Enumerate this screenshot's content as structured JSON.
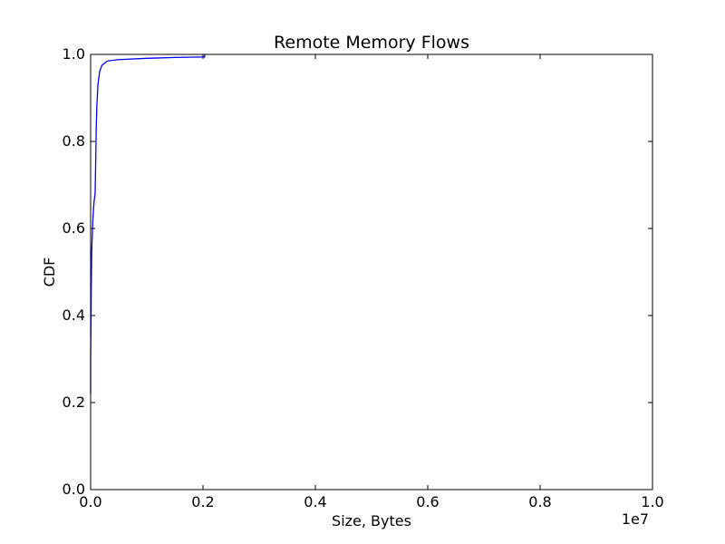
{
  "chart_data": {
    "type": "line",
    "title": "Remote Memory Flows",
    "xlabel": "Size, Bytes",
    "ylabel": "CDF",
    "x_offset_label": "1e7",
    "xlim": [
      0,
      10000000
    ],
    "ylim": [
      0,
      1.0
    ],
    "x_scale": "linear",
    "grid": false,
    "legend": "none",
    "x_ticks": [
      0,
      2000000,
      4000000,
      6000000,
      8000000,
      10000000
    ],
    "x_tick_labels": [
      "0.0",
      "0.2",
      "0.4",
      "0.6",
      "0.8",
      "1.0"
    ],
    "y_ticks": [
      0,
      0.2,
      0.4,
      0.6,
      0.8,
      1.0
    ],
    "y_tick_labels": [
      "0.0",
      "0.2",
      "0.4",
      "0.6",
      "0.8",
      "1.0"
    ],
    "series": [
      {
        "color": "#0000ff",
        "x": [
          0,
          0,
          10000,
          20000,
          40000,
          60000,
          80000,
          90000,
          100000,
          110000,
          130000,
          160000,
          200000,
          300000,
          500000,
          1000000,
          1500000,
          2000000,
          2030000,
          2030000
        ],
        "y": [
          0.22,
          0.3,
          0.45,
          0.55,
          0.62,
          0.66,
          0.68,
          0.75,
          0.83,
          0.88,
          0.93,
          0.96,
          0.975,
          0.985,
          0.988,
          0.991,
          0.993,
          0.994,
          0.994,
          1.0
        ]
      }
    ]
  }
}
